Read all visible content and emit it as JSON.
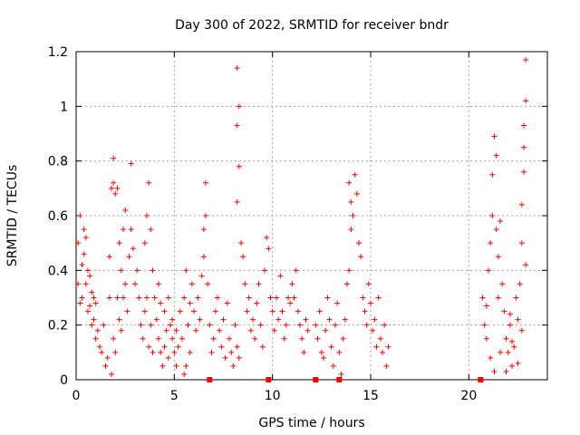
{
  "chart_data": {
    "type": "scatter",
    "title": "Day 300 of 2022, SRMTID for receiver bndr",
    "xlabel": "GPS time / hours",
    "ylabel": "SRMTID / TECUs",
    "xlim": [
      0,
      24
    ],
    "ylim": [
      0,
      1.2
    ],
    "x_ticks": [
      0,
      5,
      10,
      15,
      20
    ],
    "y_ticks": [
      0,
      0.2,
      0.4,
      0.6,
      0.8,
      1,
      1.2
    ],
    "x_tick_labels": [
      "0",
      "5",
      "10",
      "15",
      "20"
    ],
    "y_tick_labels": [
      "0",
      "0.2",
      "0.4",
      "0.6",
      "0.8",
      "1",
      "1.2"
    ],
    "grid": true,
    "marker": "+",
    "series": [
      {
        "name": "SRMTID",
        "color": "#ff0000",
        "points": [
          [
            0.1,
            0.5
          ],
          [
            0.2,
            0.6
          ],
          [
            0.3,
            0.42
          ],
          [
            0.3,
            0.3
          ],
          [
            0.4,
            0.55
          ],
          [
            0.5,
            0.35
          ],
          [
            0.6,
            0.25
          ],
          [
            0.7,
            0.38
          ],
          [
            0.8,
            0.2
          ],
          [
            0.9,
            0.3
          ],
          [
            0.1,
            0.35
          ],
          [
            0.2,
            0.28
          ],
          [
            0.4,
            0.46
          ],
          [
            0.5,
            0.52
          ],
          [
            0.6,
            0.4
          ],
          [
            0.7,
            0.27
          ],
          [
            0.8,
            0.32
          ],
          [
            0.9,
            0.22
          ],
          [
            1.0,
            0.15
          ],
          [
            1.1,
            0.18
          ],
          [
            1.0,
            0.28
          ],
          [
            1.2,
            0.12
          ],
          [
            1.3,
            0.1
          ],
          [
            1.4,
            0.2
          ],
          [
            1.5,
            0.05
          ],
          [
            1.6,
            0.08
          ],
          [
            1.7,
            0.3
          ],
          [
            1.8,
            0.02
          ],
          [
            1.9,
            0.15
          ],
          [
            2.0,
            0.1
          ],
          [
            1.7,
            0.45
          ],
          [
            1.8,
            0.7
          ],
          [
            1.9,
            0.72
          ],
          [
            2.0,
            0.68
          ],
          [
            2.1,
            0.7
          ],
          [
            1.9,
            0.81
          ],
          [
            2.2,
            0.5
          ],
          [
            2.3,
            0.4
          ],
          [
            2.4,
            0.55
          ],
          [
            2.5,
            0.62
          ],
          [
            2.1,
            0.3
          ],
          [
            2.2,
            0.22
          ],
          [
            2.3,
            0.18
          ],
          [
            2.4,
            0.3
          ],
          [
            2.5,
            0.35
          ],
          [
            2.6,
            0.25
          ],
          [
            2.7,
            0.45
          ],
          [
            2.8,
            0.55
          ],
          [
            2.8,
            0.79
          ],
          [
            2.9,
            0.48
          ],
          [
            3.0,
            0.35
          ],
          [
            3.1,
            0.4
          ],
          [
            3.2,
            0.3
          ],
          [
            3.3,
            0.2
          ],
          [
            3.4,
            0.15
          ],
          [
            3.5,
            0.25
          ],
          [
            3.6,
            0.3
          ],
          [
            3.7,
            0.12
          ],
          [
            3.8,
            0.2
          ],
          [
            3.9,
            0.1
          ],
          [
            3.5,
            0.5
          ],
          [
            3.6,
            0.6
          ],
          [
            3.7,
            0.72
          ],
          [
            3.8,
            0.55
          ],
          [
            3.9,
            0.4
          ],
          [
            4.0,
            0.3
          ],
          [
            4.1,
            0.22
          ],
          [
            4.2,
            0.15
          ],
          [
            4.3,
            0.1
          ],
          [
            4.4,
            0.05
          ],
          [
            4.2,
            0.35
          ],
          [
            4.3,
            0.28
          ],
          [
            4.5,
            0.12
          ],
          [
            4.6,
            0.18
          ],
          [
            4.7,
            0.08
          ],
          [
            4.8,
            0.2
          ],
          [
            4.9,
            0.15
          ],
          [
            5.0,
            0.1
          ],
          [
            5.1,
            0.05
          ],
          [
            5.2,
            0.12
          ],
          [
            4.5,
            0.25
          ],
          [
            4.7,
            0.3
          ],
          [
            4.9,
            0.22
          ],
          [
            5.1,
            0.18
          ],
          [
            5.3,
            0.25
          ],
          [
            5.4,
            0.15
          ],
          [
            5.5,
            0.3
          ],
          [
            5.6,
            0.4
          ],
          [
            5.7,
            0.2
          ],
          [
            5.8,
            0.1
          ],
          [
            5.5,
            0.02
          ],
          [
            5.6,
            0.05
          ],
          [
            5.8,
            0.28
          ],
          [
            5.9,
            0.35
          ],
          [
            6.0,
            0.25
          ],
          [
            6.1,
            0.18
          ],
          [
            6.2,
            0.3
          ],
          [
            6.3,
            0.22
          ],
          [
            6.4,
            0.38
          ],
          [
            6.5,
            0.45
          ],
          [
            6.5,
            0.55
          ],
          [
            6.6,
            0.6
          ],
          [
            6.6,
            0.72
          ],
          [
            6.7,
            0.35
          ],
          [
            6.8,
            0.2
          ],
          [
            6.9,
            0.1
          ],
          [
            7.0,
            0.15
          ],
          [
            7.1,
            0.25
          ],
          [
            7.2,
            0.3
          ],
          [
            7.3,
            0.18
          ],
          [
            7.4,
            0.12
          ],
          [
            7.5,
            0.22
          ],
          [
            7.6,
            0.08
          ],
          [
            7.7,
            0.28
          ],
          [
            7.8,
            0.15
          ],
          [
            7.9,
            0.1
          ],
          [
            8.0,
            0.05
          ],
          [
            8.1,
            0.2
          ],
          [
            8.2,
            0.12
          ],
          [
            8.3,
            0.08
          ],
          [
            8.2,
            0.65
          ],
          [
            8.2,
            0.93
          ],
          [
            8.3,
            1.0
          ],
          [
            8.2,
            1.14
          ],
          [
            8.3,
            0.78
          ],
          [
            8.4,
            0.5
          ],
          [
            8.5,
            0.45
          ],
          [
            8.6,
            0.35
          ],
          [
            8.7,
            0.25
          ],
          [
            8.8,
            0.3
          ],
          [
            8.9,
            0.18
          ],
          [
            9.0,
            0.22
          ],
          [
            9.1,
            0.15
          ],
          [
            9.2,
            0.28
          ],
          [
            9.3,
            0.35
          ],
          [
            9.4,
            0.2
          ],
          [
            9.5,
            0.12
          ],
          [
            9.6,
            0.4
          ],
          [
            9.7,
            0.52
          ],
          [
            9.8,
            0.48
          ],
          [
            9.9,
            0.3
          ],
          [
            10.0,
            0.25
          ],
          [
            10.1,
            0.18
          ],
          [
            10.2,
            0.3
          ],
          [
            10.3,
            0.22
          ],
          [
            10.4,
            0.38
          ],
          [
            10.5,
            0.25
          ],
          [
            10.6,
            0.15
          ],
          [
            10.7,
            0.2
          ],
          [
            10.8,
            0.3
          ],
          [
            10.9,
            0.28
          ],
          [
            11.0,
            0.35
          ],
          [
            11.1,
            0.3
          ],
          [
            11.2,
            0.4
          ],
          [
            11.3,
            0.25
          ],
          [
            11.4,
            0.2
          ],
          [
            11.5,
            0.15
          ],
          [
            11.6,
            0.1
          ],
          [
            11.7,
            0.22
          ],
          [
            11.8,
            0.18
          ],
          [
            12.2,
            0.2
          ],
          [
            12.3,
            0.15
          ],
          [
            12.4,
            0.25
          ],
          [
            12.5,
            0.1
          ],
          [
            12.6,
            0.08
          ],
          [
            12.7,
            0.18
          ],
          [
            12.8,
            0.3
          ],
          [
            12.9,
            0.22
          ],
          [
            13.0,
            0.12
          ],
          [
            13.1,
            0.05
          ],
          [
            13.2,
            0.2
          ],
          [
            13.3,
            0.28
          ],
          [
            13.4,
            0.1
          ],
          [
            13.5,
            0.02
          ],
          [
            13.6,
            0.15
          ],
          [
            13.7,
            0.22
          ],
          [
            13.8,
            0.35
          ],
          [
            13.9,
            0.4
          ],
          [
            14.0,
            0.55
          ],
          [
            14.1,
            0.6
          ],
          [
            13.9,
            0.72
          ],
          [
            14.0,
            0.65
          ],
          [
            14.2,
            0.75
          ],
          [
            14.3,
            0.68
          ],
          [
            14.4,
            0.5
          ],
          [
            14.5,
            0.45
          ],
          [
            14.6,
            0.3
          ],
          [
            14.7,
            0.25
          ],
          [
            14.8,
            0.2
          ],
          [
            14.9,
            0.35
          ],
          [
            15.0,
            0.28
          ],
          [
            15.1,
            0.18
          ],
          [
            15.2,
            0.22
          ],
          [
            15.3,
            0.12
          ],
          [
            15.4,
            0.3
          ],
          [
            15.5,
            0.15
          ],
          [
            15.6,
            0.1
          ],
          [
            15.7,
            0.2
          ],
          [
            15.8,
            0.05
          ],
          [
            15.9,
            0.12
          ],
          [
            20.7,
            0.3
          ],
          [
            20.8,
            0.2
          ],
          [
            20.9,
            0.15
          ],
          [
            21.0,
            0.4
          ],
          [
            21.1,
            0.5
          ],
          [
            21.2,
            0.6
          ],
          [
            21.2,
            0.75
          ],
          [
            21.3,
            0.89
          ],
          [
            21.4,
            0.82
          ],
          [
            21.4,
            0.55
          ],
          [
            21.5,
            0.45
          ],
          [
            21.6,
            0.58
          ],
          [
            21.7,
            0.35
          ],
          [
            21.8,
            0.25
          ],
          [
            21.9,
            0.15
          ],
          [
            22.0,
            0.1
          ],
          [
            22.1,
            0.2
          ],
          [
            22.2,
            0.05
          ],
          [
            22.3,
            0.12
          ],
          [
            22.4,
            0.3
          ],
          [
            22.5,
            0.22
          ],
          [
            22.6,
            0.35
          ],
          [
            22.7,
            0.5
          ],
          [
            22.7,
            0.64
          ],
          [
            22.8,
            0.76
          ],
          [
            22.8,
            0.93
          ],
          [
            22.9,
            1.02
          ],
          [
            22.9,
            1.17
          ],
          [
            22.8,
            0.85
          ],
          [
            22.9,
            0.42
          ],
          [
            21.1,
            0.08
          ],
          [
            21.3,
            0.03
          ],
          [
            21.6,
            0.1
          ],
          [
            21.9,
            0.03
          ],
          [
            22.2,
            0.14
          ],
          [
            22.5,
            0.06
          ],
          [
            22.7,
            0.18
          ],
          [
            20.9,
            0.27
          ],
          [
            21.5,
            0.3
          ],
          [
            22.1,
            0.24
          ]
        ]
      }
    ],
    "markers_on_axis": {
      "name": "filled squares on x-axis",
      "x_hours": [
        6.8,
        9.8,
        12.2,
        13.4,
        20.6
      ]
    }
  }
}
